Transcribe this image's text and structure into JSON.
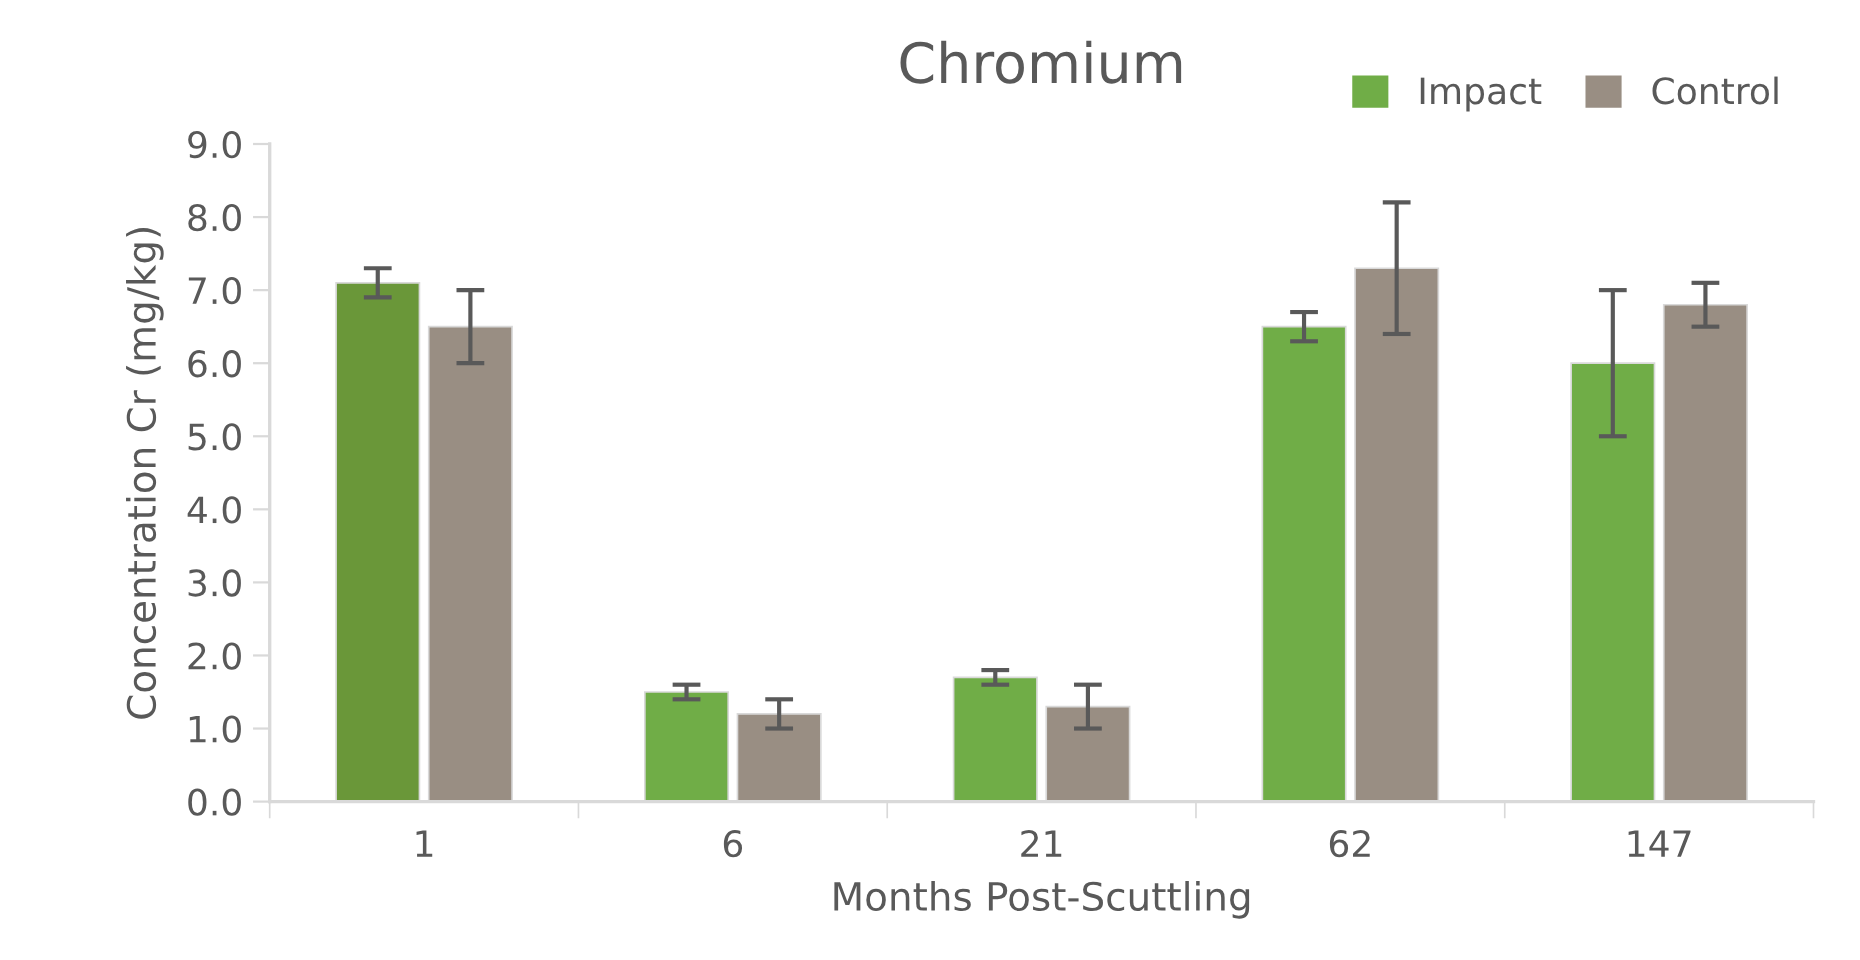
{
  "chart_data": {
    "type": "bar",
    "title": "Chromium",
    "xlabel": "Months Post-Scuttling",
    "ylabel": "Concentration Cr (mg/kg)",
    "categories": [
      "1",
      "6",
      "21",
      "62",
      "147"
    ],
    "series": [
      {
        "name": "Impact",
        "color": "#70ad47",
        "colors": [
          "#6a9739",
          "#70ad47",
          "#70ad47",
          "#70ad47",
          "#70ad47"
        ],
        "values": [
          7.1,
          1.5,
          1.7,
          6.5,
          6.0
        ],
        "errors": [
          0.2,
          0.1,
          0.1,
          0.2,
          1.0
        ]
      },
      {
        "name": "Control",
        "color": "#998e83",
        "values": [
          6.5,
          1.2,
          1.3,
          7.3,
          6.8
        ],
        "errors": [
          0.5,
          0.2,
          0.3,
          0.9,
          0.3
        ]
      }
    ],
    "ylim": [
      0,
      9
    ],
    "yticks": [
      {
        "value": 0,
        "label": "0.0"
      },
      {
        "value": 1,
        "label": "1.0"
      },
      {
        "value": 2,
        "label": "2.0"
      },
      {
        "value": 3,
        "label": "3.0"
      },
      {
        "value": 4,
        "label": "4.0"
      },
      {
        "value": 5,
        "label": "5.0"
      },
      {
        "value": 6,
        "label": "6.0"
      },
      {
        "value": 7,
        "label": "7.0"
      },
      {
        "value": 8,
        "label": "8.0"
      },
      {
        "value": 9,
        "label": "9.0"
      }
    ],
    "grid": false,
    "legend": "top right"
  }
}
